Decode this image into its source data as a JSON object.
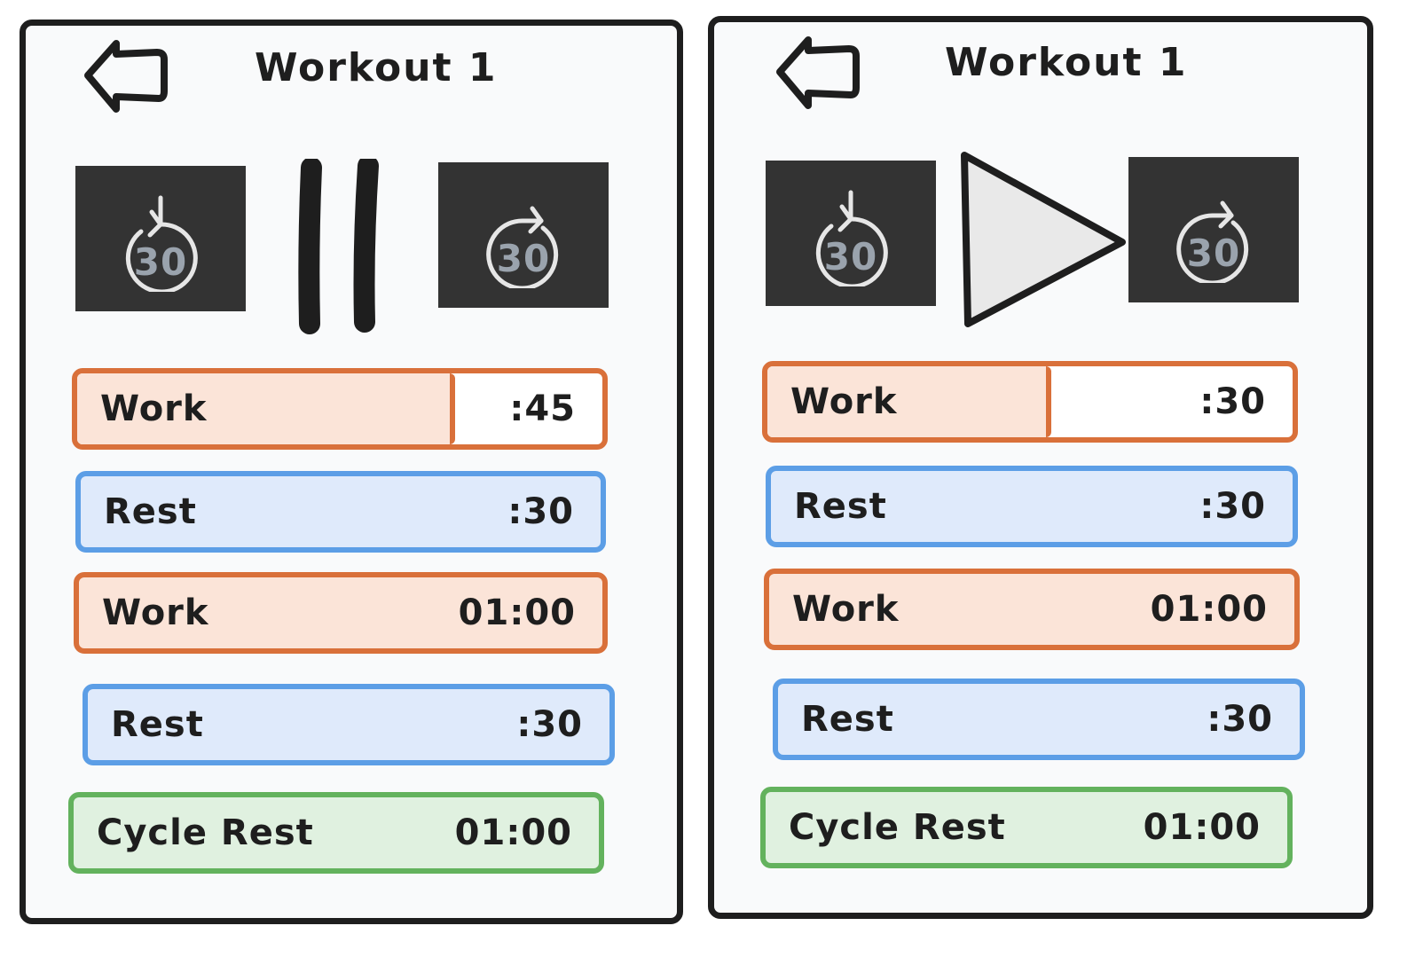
{
  "screens": [
    {
      "title": "Workout 1",
      "state": "playing",
      "controls": {
        "back": "back-arrow-icon",
        "rewind": {
          "icon": "rewind-30-icon",
          "label": "30"
        },
        "main": "pause-icon",
        "forward": {
          "icon": "forward-30-icon",
          "label": "30"
        }
      },
      "intervals": [
        {
          "label": "Work",
          "time": ":45",
          "type": "work",
          "progress": 0.72
        },
        {
          "label": "Rest",
          "time": ":30",
          "type": "rest"
        },
        {
          "label": "Work",
          "time": "01:00",
          "type": "work"
        },
        {
          "label": "Rest",
          "time": ":30",
          "type": "rest"
        },
        {
          "label": "Cycle Rest",
          "time": "01:00",
          "type": "cycle"
        }
      ]
    },
    {
      "title": "Workout 1",
      "state": "paused",
      "controls": {
        "back": "back-arrow-icon",
        "rewind": {
          "icon": "rewind-30-icon",
          "label": "30"
        },
        "main": "play-icon",
        "forward": {
          "icon": "forward-30-icon",
          "label": "30"
        }
      },
      "intervals": [
        {
          "label": "Work",
          "time": ":30",
          "type": "work",
          "progress": 0.54
        },
        {
          "label": "Rest",
          "time": ":30",
          "type": "rest"
        },
        {
          "label": "Work",
          "time": "01:00",
          "type": "work"
        },
        {
          "label": "Rest",
          "time": ":30",
          "type": "rest"
        },
        {
          "label": "Cycle Rest",
          "time": "01:00",
          "type": "cycle"
        }
      ]
    }
  ],
  "colors": {
    "work_border": "#d9703a",
    "work_fill": "#fbe4d8",
    "rest_border": "#5c9ee6",
    "rest_fill": "#dfeafb",
    "cycle_border": "#63b25d",
    "cycle_fill": "#e0f1e0",
    "skip_bg": "#333333",
    "ink": "#1e1e1e"
  }
}
